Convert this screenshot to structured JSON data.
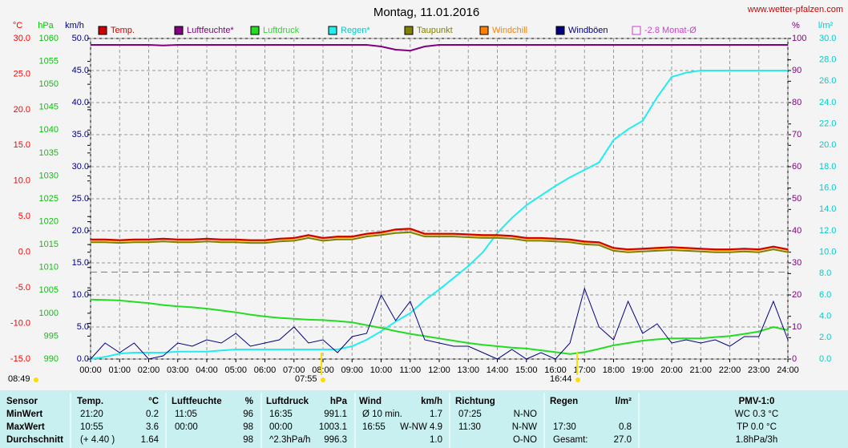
{
  "chart_data": {
    "type": "line",
    "title": "Montag, 11.01.2016",
    "source": "www.wetter-pfalzen.com",
    "xlim": [
      0,
      24
    ],
    "xticks": [
      {
        "value": 0,
        "label": "00:00"
      },
      {
        "value": 1,
        "label": "01:00"
      },
      {
        "value": 2,
        "label": "02:00"
      },
      {
        "value": 3,
        "label": "03:00"
      },
      {
        "value": 4,
        "label": "04:00"
      },
      {
        "value": 5,
        "label": "05:00"
      },
      {
        "value": 6,
        "label": "06:00"
      },
      {
        "value": 7,
        "label": "07:00"
      },
      {
        "value": 8,
        "label": "08:00"
      },
      {
        "value": 9,
        "label": "09:00"
      },
      {
        "value": 10,
        "label": "10:00"
      },
      {
        "value": 11,
        "label": "11:00"
      },
      {
        "value": 12,
        "label": "12:00"
      },
      {
        "value": 13,
        "label": "13:00"
      },
      {
        "value": 14,
        "label": "14:00"
      },
      {
        "value": 15,
        "label": "15:00"
      },
      {
        "value": 16,
        "label": "16:00"
      },
      {
        "value": 17,
        "label": "17:00"
      },
      {
        "value": 18,
        "label": "18:00"
      },
      {
        "value": 19,
        "label": "19:00"
      },
      {
        "value": 20,
        "label": "20:00"
      },
      {
        "value": 21,
        "label": "21:00"
      },
      {
        "value": 22,
        "label": "22:00"
      },
      {
        "value": 23,
        "label": "23:00"
      },
      {
        "value": 24,
        "label": "24:00"
      }
    ],
    "grid": true,
    "axes": [
      {
        "name": "°C",
        "color": "#ff0000",
        "lim": [
          -15,
          30
        ],
        "ticks": [
          {
            "value": 30,
            "label": "30.0"
          },
          {
            "value": 25,
            "label": "25.0"
          },
          {
            "value": 20,
            "label": "20.0"
          },
          {
            "value": 15,
            "label": "15.0"
          },
          {
            "value": 10,
            "label": "10.0"
          },
          {
            "value": 5,
            "label": "5.0"
          },
          {
            "value": 0,
            "label": "0.0"
          },
          {
            "value": -5,
            "label": "-5.0"
          },
          {
            "value": -10,
            "label": "-10.0"
          },
          {
            "value": -15,
            "label": "-15.0"
          }
        ]
      },
      {
        "name": "hPa",
        "color": "#00cc00",
        "lim": [
          990,
          1060
        ],
        "ticks": [
          1060,
          1055,
          1050,
          1045,
          1040,
          1035,
          1030,
          1025,
          1020,
          1015,
          1010,
          1005,
          1000,
          995,
          990
        ]
      },
      {
        "name": "km/h",
        "color": "#000080",
        "lim": [
          0,
          50
        ],
        "ticks": [
          {
            "value": 50,
            "label": "50.0"
          },
          {
            "value": 45,
            "label": "45.0"
          },
          {
            "value": 40,
            "label": "40.0"
          },
          {
            "value": 35,
            "label": "35.0"
          },
          {
            "value": 30,
            "label": "30.0"
          },
          {
            "value": 25,
            "label": "25.0"
          },
          {
            "value": 20,
            "label": "20.0"
          },
          {
            "value": 15,
            "label": "15.0"
          },
          {
            "value": 10,
            "label": "10.0"
          },
          {
            "value": 5,
            "label": "5.0"
          },
          {
            "value": 0,
            "label": "0.0"
          }
        ]
      },
      {
        "name": "%",
        "color": "#800080",
        "lim": [
          0,
          100
        ],
        "ticks": [
          100,
          90,
          80,
          70,
          60,
          50,
          40,
          30,
          20,
          10,
          0
        ]
      },
      {
        "name": "l/m²",
        "color": "#00cccc",
        "lim": [
          0,
          30
        ],
        "ticks": [
          {
            "value": 30,
            "label": "30.0"
          },
          {
            "value": 28,
            "label": "28.0"
          },
          {
            "value": 26,
            "label": "26.0"
          },
          {
            "value": 24,
            "label": "24.0"
          },
          {
            "value": 22,
            "label": "22.0"
          },
          {
            "value": 20,
            "label": "20.0"
          },
          {
            "value": 18,
            "label": "18.0"
          },
          {
            "value": 16,
            "label": "16.0"
          },
          {
            "value": 14,
            "label": "14.0"
          },
          {
            "value": 12,
            "label": "12.0"
          },
          {
            "value": 10,
            "label": "10.0"
          },
          {
            "value": 8,
            "label": "8.0"
          },
          {
            "value": 6,
            "label": "6.0"
          },
          {
            "value": 4,
            "label": "4.0"
          },
          {
            "value": 2,
            "label": "2.0"
          },
          {
            "value": 0,
            "label": "0.0"
          }
        ]
      }
    ],
    "x": [
      0,
      0.5,
      1,
      1.5,
      2,
      2.5,
      3,
      3.5,
      4,
      4.5,
      5,
      5.5,
      6,
      6.5,
      7,
      7.5,
      8,
      8.5,
      9,
      9.5,
      10,
      10.5,
      11,
      11.5,
      12,
      12.5,
      13,
      13.5,
      14,
      14.5,
      15,
      15.5,
      16,
      16.5,
      17,
      17.5,
      18,
      18.5,
      19,
      19.5,
      20,
      20.5,
      21,
      21.5,
      22,
      22.5,
      23,
      23.5,
      24
    ],
    "series": [
      {
        "name": "Temp.",
        "color": "#cc0000",
        "axis": 0,
        "values": [
          1.8,
          1.8,
          1.7,
          1.8,
          1.8,
          1.9,
          1.8,
          1.8,
          1.9,
          1.8,
          1.8,
          1.7,
          1.7,
          1.9,
          2.0,
          2.4,
          2.0,
          2.2,
          2.2,
          2.6,
          2.8,
          3.2,
          3.3,
          2.6,
          2.6,
          2.6,
          2.5,
          2.4,
          2.4,
          2.3,
          2.0,
          2.0,
          1.9,
          1.8,
          1.5,
          1.4,
          0.6,
          0.4,
          0.5,
          0.6,
          0.7,
          0.6,
          0.5,
          0.4,
          0.4,
          0.5,
          0.4,
          0.8,
          0.4
        ]
      },
      {
        "name": "Luftfeuchte*",
        "color": "#800080",
        "axis": 3,
        "values": [
          98,
          98,
          98,
          98,
          98,
          97.8,
          98,
          98,
          98,
          98,
          98,
          98,
          98,
          98,
          98,
          98,
          98,
          98,
          98,
          98,
          97.5,
          96.5,
          96.2,
          97.5,
          98,
          98,
          98,
          98,
          98,
          98,
          98,
          98,
          98,
          98,
          98,
          98,
          98,
          98,
          98,
          98,
          98,
          98,
          98,
          98,
          98,
          98,
          98,
          98,
          98
        ]
      },
      {
        "name": "Luftdruck",
        "color": "#22dd22",
        "axis": 1,
        "values": [
          1003,
          1002.9,
          1002.8,
          1002.5,
          1002.2,
          1001.8,
          1001.5,
          1001.3,
          1001,
          1000.6,
          1000.2,
          999.7,
          999.3,
          999,
          998.8,
          998.6,
          998.5,
          998.3,
          998,
          997.4,
          996.8,
          996.1,
          995.5,
          995,
          994.5,
          994,
          993.5,
          993.1,
          992.8,
          992.5,
          992.3,
          991.9,
          991.5,
          991.1,
          991.5,
          992.2,
          993,
          993.5,
          994,
          994.3,
          994.5,
          994.5,
          994.5,
          994.8,
          995,
          995.5,
          996,
          997,
          996.3
        ]
      },
      {
        "name": "Regen*",
        "color": "#22eeee",
        "axis": 4,
        "values": [
          0,
          0.2,
          0.5,
          0.6,
          0.6,
          0.6,
          0.7,
          0.7,
          0.7,
          0.8,
          0.9,
          0.9,
          0.9,
          0.9,
          0.9,
          0.9,
          0.9,
          0.9,
          1.2,
          1.8,
          2.6,
          3.5,
          4.3,
          5.5,
          6.5,
          7.6,
          8.7,
          10.0,
          11.8,
          13.2,
          14.4,
          15.3,
          16.2,
          17.0,
          17.7,
          18.4,
          20.5,
          21.5,
          22.3,
          24.5,
          26.4,
          26.8,
          27.0,
          27.0,
          27.0,
          27.0,
          27.0,
          27.0,
          27.0
        ]
      },
      {
        "name": "Taupunkt",
        "color": "#808000",
        "axis": 0,
        "values": [
          1.4,
          1.4,
          1.3,
          1.4,
          1.4,
          1.5,
          1.4,
          1.4,
          1.5,
          1.4,
          1.4,
          1.3,
          1.3,
          1.5,
          1.6,
          2.0,
          1.6,
          1.8,
          1.8,
          2.2,
          2.4,
          2.7,
          2.8,
          2.2,
          2.2,
          2.2,
          2.1,
          2.0,
          2.0,
          1.9,
          1.6,
          1.6,
          1.5,
          1.4,
          1.1,
          1.0,
          0.2,
          0.0,
          0.1,
          0.2,
          0.3,
          0.2,
          0.1,
          0.0,
          0.0,
          0.1,
          0.0,
          0.4,
          0.0
        ]
      },
      {
        "name": "Windchill",
        "color": "#ff8000",
        "axis": 0,
        "values": [
          1.7,
          1.7,
          1.6,
          1.7,
          1.7,
          1.8,
          1.7,
          1.7,
          1.8,
          1.7,
          1.7,
          1.6,
          1.6,
          1.8,
          1.9,
          2.3,
          1.9,
          2.1,
          2.1,
          2.5,
          2.7,
          3.1,
          3.2,
          2.5,
          2.5,
          2.5,
          2.4,
          2.3,
          2.3,
          2.2,
          1.9,
          1.9,
          1.8,
          1.7,
          1.4,
          1.3,
          0.5,
          0.3,
          0.4,
          0.5,
          0.6,
          0.5,
          0.4,
          0.3,
          0.3,
          0.4,
          0.3,
          0.7,
          0.3
        ]
      },
      {
        "name": "Windböen",
        "color": "#000080",
        "axis": 2,
        "values": [
          0,
          2.5,
          1,
          2.5,
          0,
          0.5,
          2.5,
          2,
          3,
          2.5,
          4,
          2,
          2.5,
          3,
          5,
          2.5,
          3,
          1,
          3.5,
          4,
          10,
          6,
          9,
          3,
          2.5,
          2,
          2,
          1,
          0,
          1.5,
          0,
          1,
          0,
          2.5,
          11,
          5,
          3,
          9,
          4,
          5.5,
          2.5,
          3,
          2.5,
          3,
          2,
          3.5,
          3.5,
          9,
          3
        ]
      }
    ],
    "reference_line": {
      "name": "-2.8 Monat-Ø",
      "value": -2.8,
      "axis": 0,
      "color": "#cc44cc"
    },
    "sun_times": [
      "08:49",
      "07:55",
      "16:44"
    ]
  },
  "table": {
    "header": [
      "Sensor",
      "Temp.",
      "°C",
      "Luftfeuchte",
      "%",
      "Luftdruck",
      "hPa",
      "Wind",
      "km/h",
      "Richtung",
      null,
      "Regen",
      "l/m²",
      "PMV-1:0"
    ],
    "rows": [
      [
        "MinWert",
        "21:20",
        "0.2",
        "11:05",
        "96",
        "16:35",
        "991.1",
        "Ø 10 min.",
        "1.7",
        "07:25",
        "N-NO",
        null,
        null,
        "WC 0.3 °C"
      ],
      [
        "MaxWert",
        "10:55",
        "3.6",
        "00:00",
        "98",
        "00:00",
        "1003.1",
        "16:55",
        "W-NW 4.9",
        "11:30",
        "N-NW",
        "17:30",
        "0.8",
        "TP 0.0 °C"
      ],
      [
        "Durchschnitt",
        "(+ 4.40 )",
        "1.64",
        null,
        "98",
        "^2.3hPa/h",
        "996.3",
        null,
        "1.0",
        null,
        "O-NO",
        "Gesamt:",
        "27.0",
        "1.8hPa/3h"
      ]
    ]
  }
}
